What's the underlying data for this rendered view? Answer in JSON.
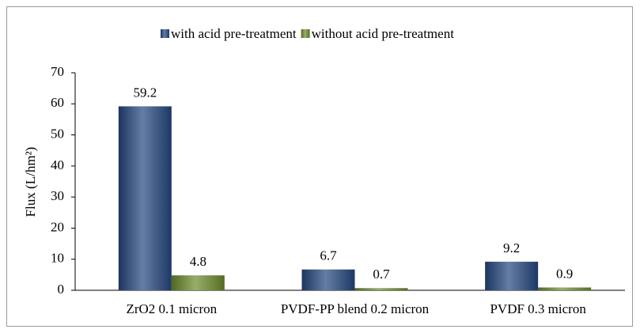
{
  "chart_data": {
    "type": "bar",
    "y_label": "Flux (L/hm²)",
    "categories": [
      "ZrO2 0.1 micron",
      "PVDF-PP blend 0.2 micron",
      "PVDF 0.3 micron"
    ],
    "series": [
      {
        "name": "with acid pre-treatment",
        "color": "#24467f",
        "values": [
          59.2,
          6.7,
          9.2
        ]
      },
      {
        "name": "without acid pre-treatment",
        "color": "#6b8a2a",
        "values": [
          4.8,
          0.7,
          0.9
        ]
      }
    ],
    "ylim": [
      0,
      70
    ],
    "yticks": [
      0,
      10,
      20,
      30,
      40,
      50,
      60,
      70
    ],
    "legend": "top",
    "grid": false
  }
}
